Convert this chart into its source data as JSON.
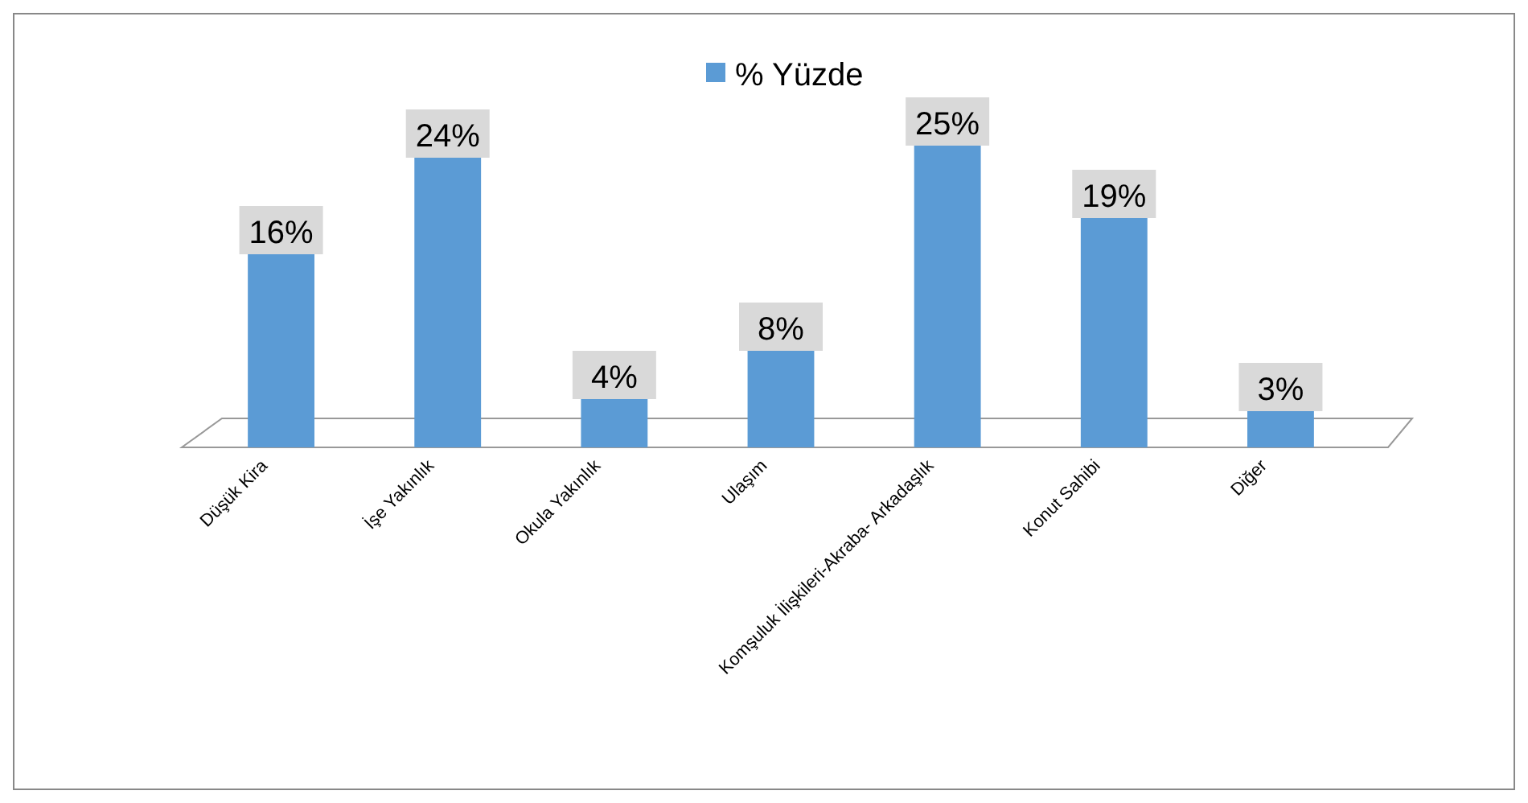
{
  "chart_data": {
    "type": "bar",
    "categories": [
      "Düşük Kira",
      "İşe Yakınlık",
      "Okula Yakınlık",
      "Ulaşım",
      "Komşuluk İlişkileri-Akraba- Arkadaşlık",
      "Konut Sahibi",
      "Diğer"
    ],
    "series": [
      {
        "name": "% Yüzde",
        "color": "#5b9bd5",
        "values": [
          16,
          24,
          4,
          8,
          25,
          19,
          3
        ],
        "value_labels": [
          "16%",
          "24%",
          "4%",
          "8%",
          "25%",
          "19%",
          "3%"
        ]
      }
    ],
    "tick_labels": "x",
    "legend": "top"
  }
}
